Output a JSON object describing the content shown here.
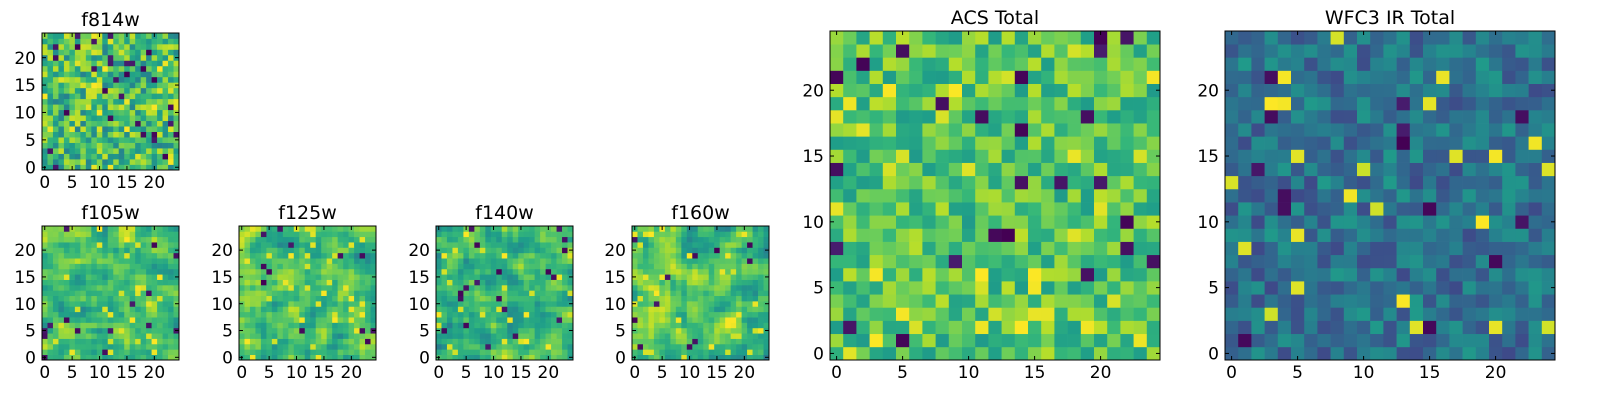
{
  "chart_data": [
    {
      "type": "heatmap",
      "title": "f814w",
      "grid": [
        25,
        25
      ],
      "xticks": [
        "0",
        "5",
        "10",
        "15",
        "20"
      ],
      "yticks": [
        "0",
        "5",
        "10",
        "15",
        "20"
      ],
      "colormap": "viridis",
      "seed": 11,
      "base": 0.68,
      "spread": 0.24,
      "darkFrac": 0.05,
      "brightFrac": 0.07,
      "blocky": false
    },
    {
      "type": "heatmap",
      "title": "f105w",
      "grid": [
        25,
        25
      ],
      "xticks": [
        "0",
        "5",
        "10",
        "15",
        "20"
      ],
      "yticks": [
        "0",
        "5",
        "10",
        "15",
        "20"
      ],
      "colormap": "viridis",
      "seed": 23,
      "base": 0.7,
      "spread": 0.2,
      "darkFrac": 0.02,
      "brightFrac": 0.05,
      "blocky": true
    },
    {
      "type": "heatmap",
      "title": "f125w",
      "grid": [
        25,
        25
      ],
      "xticks": [
        "0",
        "5",
        "10",
        "15",
        "20"
      ],
      "yticks": [
        "0",
        "5",
        "10",
        "15",
        "20"
      ],
      "colormap": "viridis",
      "seed": 37,
      "base": 0.7,
      "spread": 0.2,
      "darkFrac": 0.02,
      "brightFrac": 0.05,
      "blocky": true
    },
    {
      "type": "heatmap",
      "title": "f140w",
      "grid": [
        25,
        25
      ],
      "xticks": [
        "0",
        "5",
        "10",
        "15",
        "20"
      ],
      "yticks": [
        "0",
        "5",
        "10",
        "15",
        "20"
      ],
      "colormap": "viridis",
      "seed": 41,
      "base": 0.66,
      "spread": 0.2,
      "darkFrac": 0.02,
      "brightFrac": 0.04,
      "blocky": true
    },
    {
      "type": "heatmap",
      "title": "f160w",
      "grid": [
        25,
        25
      ],
      "xticks": [
        "0",
        "5",
        "10",
        "15",
        "20"
      ],
      "yticks": [
        "0",
        "5",
        "10",
        "15",
        "20"
      ],
      "colormap": "viridis",
      "seed": 53,
      "base": 0.72,
      "spread": 0.2,
      "darkFrac": 0.02,
      "brightFrac": 0.05,
      "blocky": true
    },
    {
      "type": "heatmap",
      "title": "ACS Total",
      "grid": [
        25,
        25
      ],
      "xticks": [
        "0",
        "5",
        "10",
        "15",
        "20"
      ],
      "yticks": [
        "0",
        "5",
        "10",
        "15",
        "20"
      ],
      "colormap": "viridis",
      "seed": 67,
      "base": 0.72,
      "spread": 0.18,
      "darkFrac": 0.025,
      "brightFrac": 0.05,
      "blocky": false
    },
    {
      "type": "heatmap",
      "title": "WFC3 IR Total",
      "grid": [
        25,
        25
      ],
      "xticks": [
        "0",
        "5",
        "10",
        "15",
        "20"
      ],
      "yticks": [
        "0",
        "5",
        "10",
        "15",
        "20"
      ],
      "colormap": "viridis",
      "seed": 79,
      "base": 0.38,
      "spread": 0.16,
      "darkFrac": 0.03,
      "brightFrac": 0.025,
      "blocky": false
    }
  ]
}
